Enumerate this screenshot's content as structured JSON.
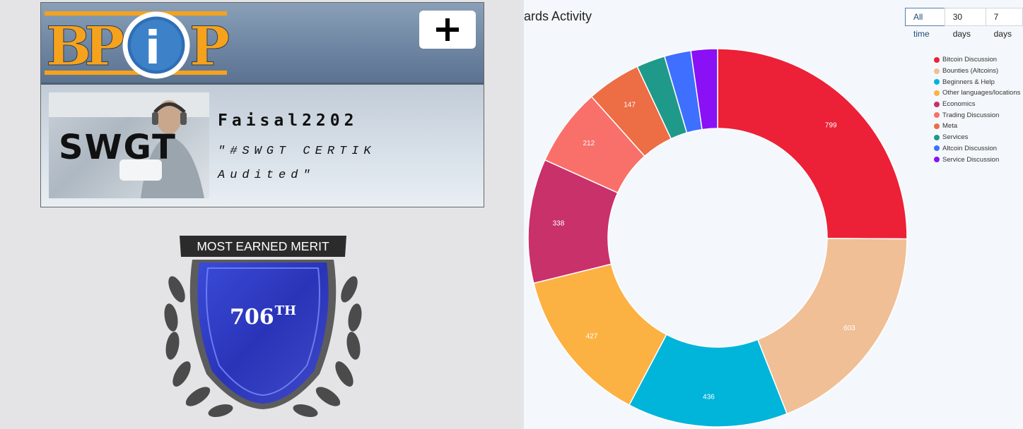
{
  "profile": {
    "logo_letters": [
      "B",
      "P",
      "i",
      "P"
    ],
    "add_button": "+",
    "avatar_text": "SWGT",
    "username": "Faisal2202",
    "status_line1": "\"#SWGT CERTIK",
    "status_line2": "Audited\""
  },
  "merit_badge": {
    "title": "MOST EARNED MERIT",
    "rank_number": "706",
    "rank_suffix": "TH"
  },
  "boards": {
    "title": "ards Activity",
    "tabs": [
      "All time",
      "30 days",
      "7 days"
    ],
    "active_tab": "All time"
  },
  "chart_data": {
    "type": "pie",
    "title": "ards Activity",
    "donut": true,
    "legend_position": "top-right",
    "categories": [
      "Bitcoin Discussion",
      "Bounties (Altcoins)",
      "Beginners & Help",
      "Other languages/locations",
      "Economics",
      "Trading Discussion",
      "Meta",
      "Services",
      "Altcoin Discussion",
      "Service Discussion"
    ],
    "values": [
      799,
      603,
      436,
      427,
      338,
      212,
      147,
      78,
      72,
      72
    ],
    "labels": [
      "799",
      "603",
      "436",
      "427",
      "338",
      "212",
      "147",
      "",
      "",
      ""
    ],
    "colors": [
      "#ec2037",
      "#f0bf96",
      "#00b4da",
      "#fcb143",
      "#c9316a",
      "#f9706a",
      "#ed6d45",
      "#1f9a8a",
      "#3f6fff",
      "#8a10f5"
    ]
  }
}
